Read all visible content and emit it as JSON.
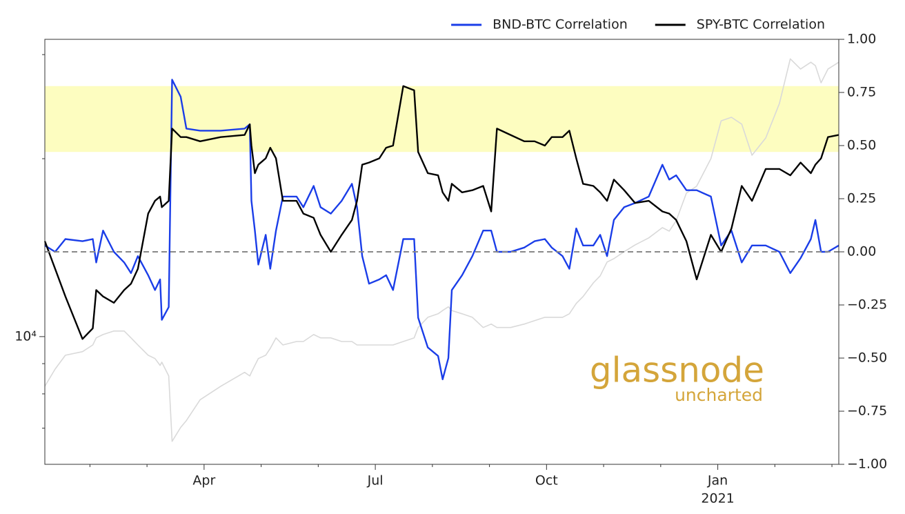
{
  "chart_data": {
    "type": "line",
    "x": [
      0.21,
      0.39,
      0.57,
      0.87,
      1.05,
      1.11,
      1.23,
      1.42,
      1.6,
      1.72,
      1.84,
      2.02,
      2.14,
      2.23,
      2.26,
      2.38,
      2.44,
      2.59,
      2.69,
      2.93,
      3.29,
      3.71,
      3.8,
      3.83,
      3.89,
      3.95,
      4.08,
      4.16,
      4.26,
      4.38,
      4.62,
      4.74,
      4.92,
      5.04,
      5.22,
      5.41,
      5.59,
      5.68,
      5.77,
      5.89,
      6.07,
      6.19,
      6.31,
      6.49,
      6.68,
      6.75,
      6.92,
      7.1,
      7.18,
      7.28,
      7.34,
      7.52,
      7.7,
      7.89,
      8.03,
      8.13,
      8.37,
      8.61,
      8.79,
      8.97,
      9.09,
      9.28,
      9.4,
      9.52,
      9.64,
      9.82,
      9.94,
      10.06,
      10.18,
      10.36,
      10.55,
      10.79,
      11.03,
      11.15,
      11.27,
      11.45,
      11.63,
      11.88,
      12.06,
      12.24,
      12.42,
      12.6,
      12.84,
      13.08,
      13.27,
      13.45,
      13.63,
      13.71,
      13.81,
      13.93,
      14.12
    ],
    "series": [
      {
        "color": "#d9d9d9",
        "axis": "y",
        "values": [
          8240,
          8810,
          9300,
          9430,
          9680,
          9950,
          10080,
          10220,
          10220,
          9950,
          9680,
          9300,
          9180,
          8940,
          9050,
          8580,
          6650,
          7020,
          7210,
          7820,
          8240,
          8700,
          8580,
          8700,
          8940,
          9180,
          9300,
          9550,
          9950,
          9680,
          9810,
          9810,
          10080,
          9950,
          9950,
          9810,
          9810,
          9680,
          9680,
          9680,
          9680,
          9680,
          9680,
          9810,
          9950,
          10360,
          10780,
          10930,
          11070,
          11230,
          11070,
          10930,
          10780,
          10360,
          10500,
          10360,
          10360,
          10500,
          10640,
          10780,
          10780,
          10780,
          10930,
          11380,
          11690,
          12330,
          12670,
          13370,
          13550,
          13920,
          14290,
          14690,
          15290,
          15080,
          15700,
          17490,
          17970,
          20000,
          23180,
          23500,
          22880,
          20270,
          21680,
          24790,
          29510,
          28360,
          29120,
          28740,
          26880,
          28360,
          29120
        ]
      },
      {
        "name": "BND-BTC Correlation",
        "color": "#1a3de8",
        "axis": "y2",
        "values": [
          0.03,
          0.0,
          0.06,
          0.05,
          0.06,
          -0.05,
          0.1,
          0.0,
          -0.05,
          -0.1,
          -0.02,
          -0.11,
          -0.18,
          -0.13,
          -0.32,
          -0.26,
          0.81,
          0.73,
          0.58,
          0.57,
          0.57,
          0.58,
          0.6,
          0.24,
          0.1,
          -0.06,
          0.08,
          -0.08,
          0.1,
          0.26,
          0.26,
          0.21,
          0.31,
          0.21,
          0.18,
          0.24,
          0.32,
          0.21,
          -0.02,
          -0.15,
          -0.13,
          -0.11,
          -0.18,
          0.06,
          0.06,
          -0.31,
          -0.45,
          -0.49,
          -0.6,
          -0.5,
          -0.18,
          -0.11,
          -0.02,
          0.1,
          0.1,
          0.0,
          0.0,
          0.02,
          0.05,
          0.06,
          0.02,
          -0.02,
          -0.08,
          0.11,
          0.03,
          0.03,
          0.08,
          -0.02,
          0.15,
          0.21,
          0.23,
          0.26,
          0.41,
          0.34,
          0.36,
          0.29,
          0.29,
          0.26,
          0.03,
          0.1,
          -0.05,
          0.03,
          0.03,
          0.0,
          -0.1,
          -0.03,
          0.06,
          0.15,
          0.0,
          0.0,
          0.03
        ]
      },
      {
        "name": "SPY-BTC Correlation",
        "color": "#000000",
        "axis": "y2",
        "values": [
          0.05,
          -0.08,
          -0.21,
          -0.41,
          -0.36,
          -0.18,
          -0.21,
          -0.24,
          -0.18,
          -0.15,
          -0.08,
          0.18,
          0.24,
          0.26,
          0.21,
          0.24,
          0.58,
          0.54,
          0.54,
          0.52,
          0.54,
          0.55,
          0.6,
          0.5,
          0.37,
          0.41,
          0.44,
          0.49,
          0.44,
          0.24,
          0.24,
          0.18,
          0.16,
          0.08,
          0.0,
          0.08,
          0.15,
          0.24,
          0.41,
          0.42,
          0.44,
          0.49,
          0.5,
          0.78,
          0.76,
          0.47,
          0.37,
          0.36,
          0.28,
          0.24,
          0.32,
          0.28,
          0.29,
          0.31,
          0.19,
          0.58,
          0.55,
          0.52,
          0.52,
          0.5,
          0.54,
          0.54,
          0.57,
          0.44,
          0.32,
          0.31,
          0.28,
          0.24,
          0.34,
          0.29,
          0.23,
          0.24,
          0.19,
          0.18,
          0.15,
          0.05,
          -0.13,
          0.08,
          0.0,
          0.11,
          0.31,
          0.24,
          0.39,
          0.39,
          0.36,
          0.42,
          0.37,
          0.41,
          0.44,
          0.54,
          0.55
        ]
      }
    ],
    "xlim": [
      0.21,
      14.12
    ],
    "xticks": [
      {
        "value": 3,
        "label": "Apr"
      },
      {
        "value": 6,
        "label": "Jul"
      },
      {
        "value": 9,
        "label": "Oct"
      },
      {
        "value": 12,
        "label": "Jan"
      }
    ],
    "xtick_year": {
      "value": 12,
      "label": "2021"
    },
    "xminor": [
      1,
      2,
      4,
      5,
      7,
      8,
      10,
      11,
      13,
      14
    ],
    "ylim": [
      6080,
      31840
    ],
    "ylog": true,
    "yticks": [
      {
        "value": 10000,
        "label": "10⁴"
      }
    ],
    "yminor": [
      7000,
      8000,
      9000,
      20000,
      30000
    ],
    "y2lim": [
      -1,
      1
    ],
    "y2ticks": [
      {
        "value": 1,
        "label": "1.00"
      },
      {
        "value": 0.75,
        "label": "0.75"
      },
      {
        "value": 0.5,
        "label": "0.50"
      },
      {
        "value": 0.25,
        "label": "0.25"
      },
      {
        "value": 0,
        "label": "0.00"
      },
      {
        "value": -0.25,
        "label": "−0.25"
      },
      {
        "value": -0.5,
        "label": "−0.50"
      },
      {
        "value": -0.75,
        "label": "−0.75"
      },
      {
        "value": -1,
        "label": "−1.00"
      }
    ],
    "highlight_band": [
      0.47,
      0.78
    ],
    "highlight_color": "#fdfdc0",
    "reference_line": 0,
    "legend": "top-right",
    "watermark": {
      "title": "glassnode",
      "subtitle": "uncharted"
    }
  }
}
